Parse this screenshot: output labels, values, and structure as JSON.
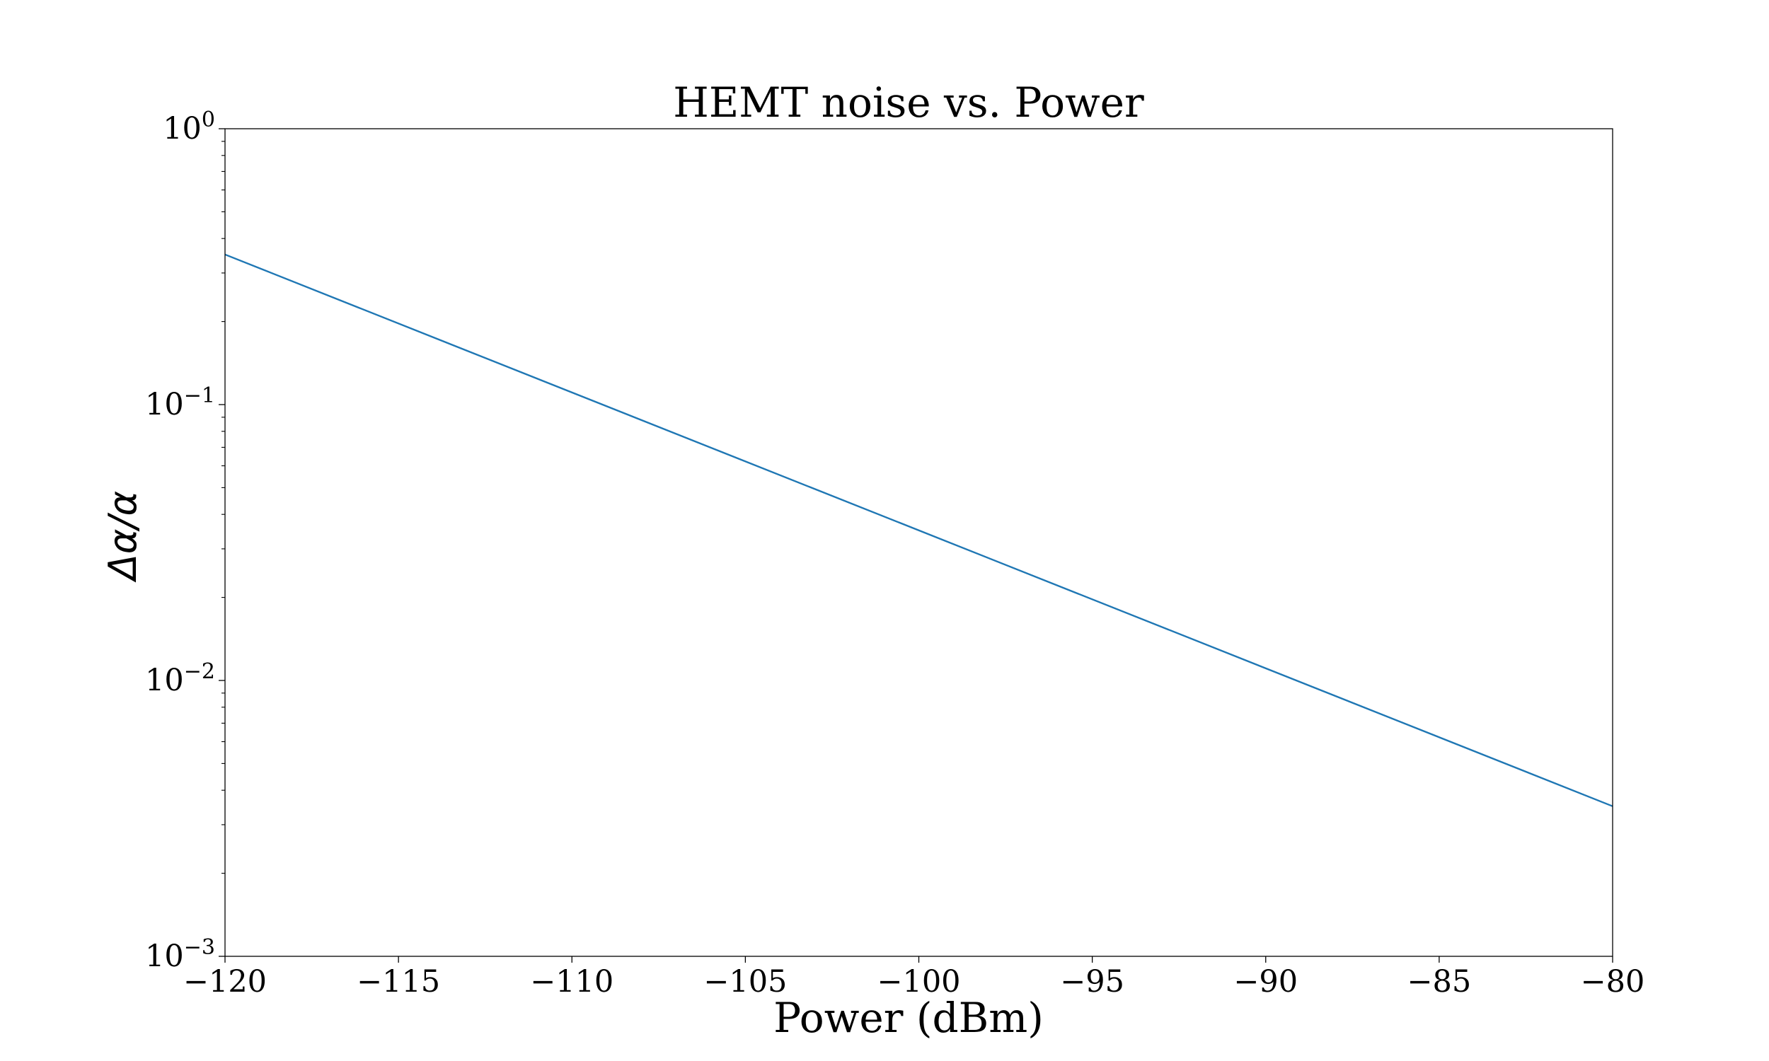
{
  "chart_data": {
    "type": "line",
    "title": "HEMT noise vs. Power",
    "xlabel": "Power (dBm)",
    "ylabel": "Δα/α",
    "xlim": [
      -120,
      -80
    ],
    "ylim": [
      0.001,
      1
    ],
    "yscale": "log",
    "grid": false,
    "x_ticks": [
      -120,
      -115,
      -110,
      -105,
      -100,
      -95,
      -90,
      -85,
      -80
    ],
    "x_tick_labels": [
      "−120",
      "−115",
      "−110",
      "−105",
      "−100",
      "−95",
      "−90",
      "−85",
      "−80"
    ],
    "y_ticks": [
      {
        "value": 1,
        "base": "10",
        "exp": "0"
      },
      {
        "value": 0.1,
        "base": "10",
        "exp": "−1"
      },
      {
        "value": 0.01,
        "base": "10",
        "exp": "−2"
      },
      {
        "value": 0.001,
        "base": "10",
        "exp": "−3"
      }
    ],
    "series": [
      {
        "color": "#1f77b4",
        "x": [
          -120,
          -80
        ],
        "y": [
          0.35,
          0.0035
        ]
      }
    ]
  }
}
